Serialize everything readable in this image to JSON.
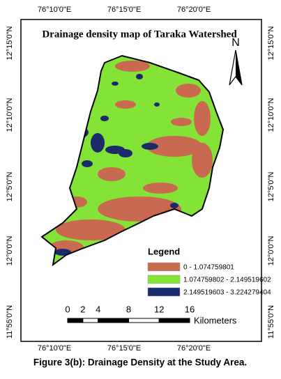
{
  "title": "Drainage density map of Taraka Watershed",
  "top_labels": [
    "76°10'0\"E",
    "76°15'0\"E",
    "76°20'0\"E"
  ],
  "bottom_labels": [
    "76°10'0\"E",
    "76°15'0\"E",
    "76°20'0\"E"
  ],
  "left_labels": [
    "12°15'0\"N",
    "12°10'0\"N",
    "12°5'0\"N",
    "12°0'0\"N",
    "11°55'0\"N"
  ],
  "right_labels": [
    "12°15'0\"N",
    "12°10'0\"N",
    "12°5'0\"N",
    "12°0'0\"N",
    "11°55'0\"N"
  ],
  "north": "N",
  "legend": {
    "title": "Legend",
    "items": [
      {
        "label": "0 - 1.074759801",
        "color": "#c96a50"
      },
      {
        "label": "1.074759802 - 2.149519602",
        "color": "#84e337"
      },
      {
        "label": "2.149519603 - 3.224279404",
        "color": "#1b2a6b"
      }
    ]
  },
  "scale_bar": {
    "ticks": [
      0,
      2,
      4,
      8,
      12,
      16
    ],
    "unit": "Kilometers"
  },
  "caption": "Figure 3(b): Drainage Density at the Study Area."
}
